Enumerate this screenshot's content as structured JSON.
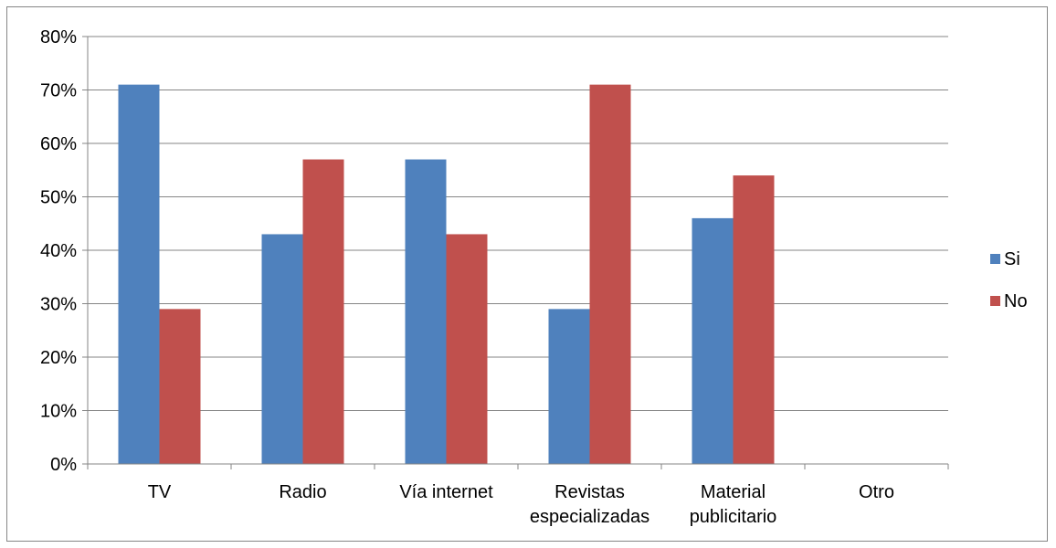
{
  "chart_data": {
    "type": "bar",
    "title": "",
    "xlabel": "",
    "ylabel": "",
    "categories": [
      [
        "TV"
      ],
      [
        "Radio"
      ],
      [
        "Vía internet"
      ],
      [
        "Revistas",
        "especializadas"
      ],
      [
        "Material",
        "publicitario"
      ],
      [
        "Otro"
      ]
    ],
    "series": [
      {
        "name": "Si",
        "color": "#4F81BD",
        "values": [
          71,
          43,
          57,
          29,
          46,
          0
        ]
      },
      {
        "name": "No",
        "color": "#C0504D",
        "values": [
          29,
          57,
          43,
          71,
          54,
          0
        ]
      }
    ],
    "ylim": [
      0,
      80
    ],
    "yticks": [
      0,
      10,
      20,
      30,
      40,
      50,
      60,
      70,
      80
    ],
    "ytick_format": "{v}%",
    "grid": true,
    "legend_position": "right"
  }
}
